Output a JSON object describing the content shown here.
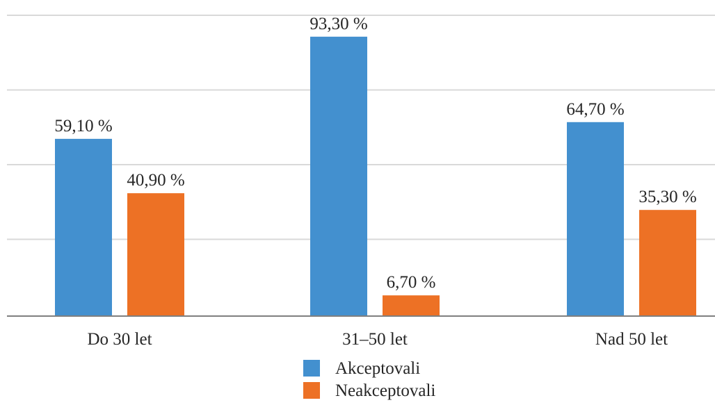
{
  "chart_data": {
    "type": "bar",
    "categories": [
      "Do 30 let",
      "31–50 let",
      "Nad 50 let"
    ],
    "series": [
      {
        "name": "Akceptovali",
        "values": [
          59.1,
          93.3,
          64.7
        ],
        "labels": [
          "59,10 %",
          "93,30 %",
          "64,70 %"
        ],
        "color": "#4390cf"
      },
      {
        "name": "Neakceptovali",
        "values": [
          40.9,
          6.7,
          35.3
        ],
        "labels": [
          "40,90 %",
          "6,70 %",
          "35,30 %"
        ],
        "color": "#ed7125"
      }
    ],
    "ylim": [
      0,
      100
    ],
    "grid": true,
    "legend_position": "bottom",
    "title": "",
    "xlabel": "",
    "ylabel": ""
  }
}
